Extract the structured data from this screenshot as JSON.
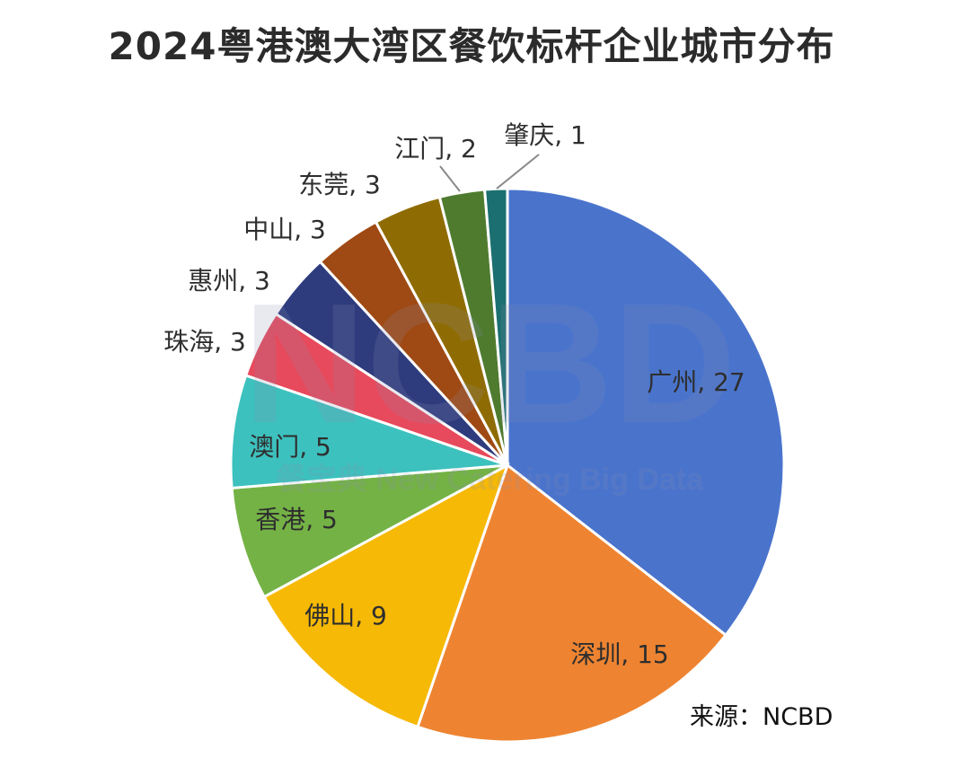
{
  "chart_data": {
    "type": "pie",
    "title": "2024粤港澳大湾区餐饮标杆企业城市分布",
    "categories": [
      "广州",
      "深圳",
      "佛山",
      "香港",
      "澳门",
      "珠海",
      "惠州",
      "中山",
      "东莞",
      "江门",
      "肇庆"
    ],
    "values": [
      27,
      15,
      9,
      5,
      5,
      3,
      3,
      3,
      3,
      2,
      1
    ],
    "colors": [
      "#4A74CC",
      "#EE8431",
      "#F6B906",
      "#74B246",
      "#3DC1BE",
      "#E64A5C",
      "#2E3C7E",
      "#9F4A14",
      "#8F6C03",
      "#4F7B2F",
      "#1B6F70"
    ],
    "label_format": "{category}, {value}",
    "start": "top",
    "direction": "clockwise",
    "source": "来源：NCBD",
    "watermark": {
      "logo": "NCBD",
      "text": "餐宝典 New Catering Big Data"
    }
  }
}
